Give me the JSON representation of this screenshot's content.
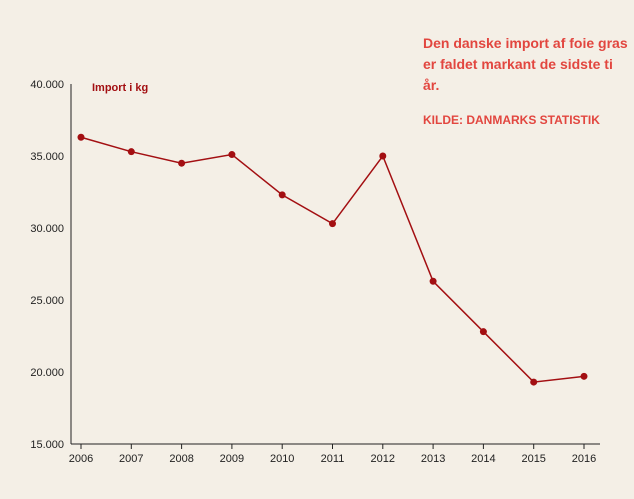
{
  "colors": {
    "background": "#f4efe6",
    "line": "#a30f12",
    "annotation": "#e2463f",
    "axis": "#222222"
  },
  "annotation": {
    "headline": "Den danske import af foie gras er faldet markant de sidste ti år.",
    "source": "KILDE: DANMARKS STATISTIK"
  },
  "chart_data": {
    "type": "line",
    "title": "",
    "xlabel": "",
    "ylabel": "Import i kg",
    "ylim": [
      15000,
      40000
    ],
    "yticks": [
      15000,
      20000,
      25000,
      30000,
      35000,
      40000
    ],
    "ytick_labels": [
      "15.000",
      "20.000",
      "25.000",
      "30.000",
      "35.000",
      "40.000"
    ],
    "grid": false,
    "x": [
      "2006",
      "2007",
      "2008",
      "2009",
      "2010",
      "2011",
      "2012",
      "2013",
      "2014",
      "2015",
      "2016"
    ],
    "series": [
      {
        "values": [
          36300,
          35300,
          34500,
          35100,
          32300,
          30300,
          35000,
          26300,
          22800,
          19300,
          19700
        ]
      }
    ]
  }
}
